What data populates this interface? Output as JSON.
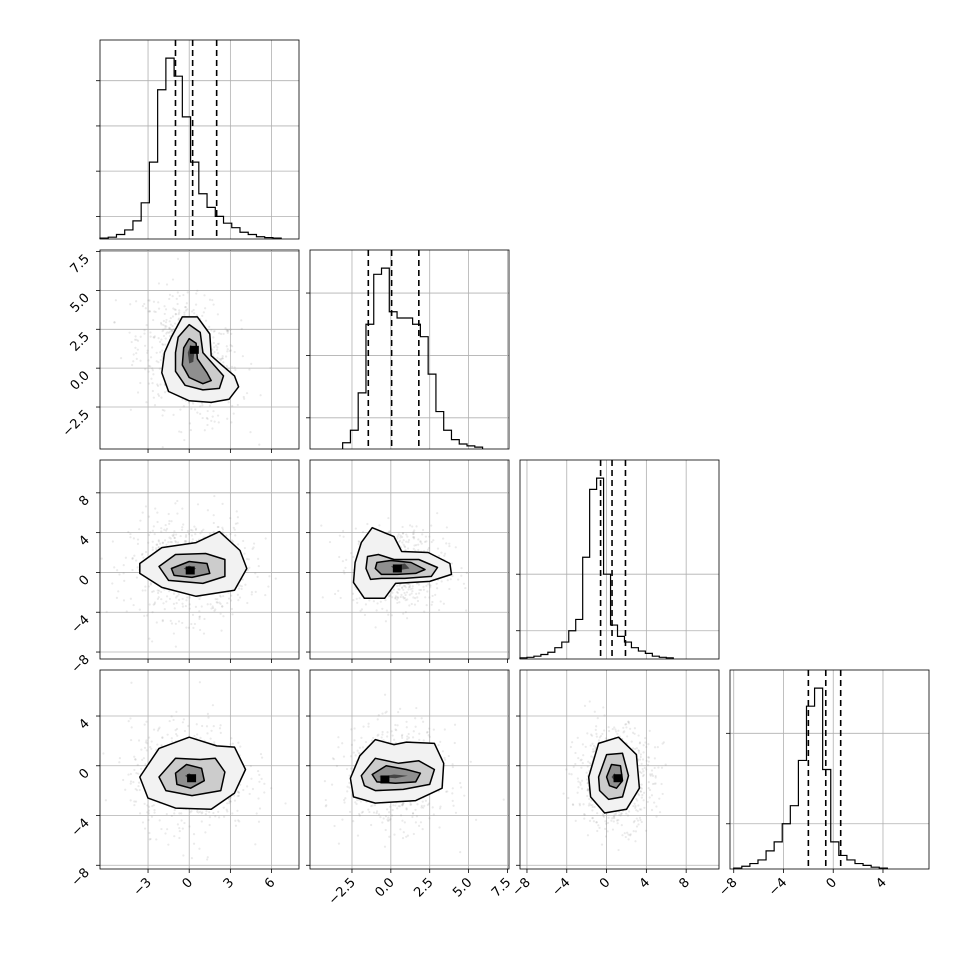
{
  "chart_data": {
    "type": "corner",
    "n_params": 4,
    "axis_ticks": [
      {
        "min": -6.5,
        "max": 8.0,
        "ticks": [
          -3,
          0,
          3,
          6
        ],
        "labels": [
          "−3",
          "0",
          "3",
          "6"
        ]
      },
      {
        "min": -5.2,
        "max": 7.6,
        "ticks": [
          -2.5,
          0.0,
          2.5,
          5.0,
          7.5
        ],
        "labels": [
          "−2.5",
          "0.0",
          "2.5",
          "5.0",
          "7.5"
        ]
      },
      {
        "min": -8.7,
        "max": 11.3,
        "ticks": [
          -8,
          -4,
          0,
          4,
          8
        ],
        "labels": [
          "−8",
          "−4",
          "0",
          "4",
          "8"
        ]
      },
      {
        "min": -8.3,
        "max": 7.7,
        "ticks": [
          -8,
          -4,
          0,
          4
        ],
        "labels": [
          "−8",
          "−4",
          "0",
          "4"
        ]
      }
    ],
    "quantiles": [
      [
        -1.0,
        0.25,
        2.0
      ],
      [
        -1.45,
        0.05,
        1.8
      ],
      [
        -0.6,
        0.55,
        1.9
      ],
      [
        -2.0,
        -0.6,
        0.6
      ]
    ],
    "hist_y_ticks": [
      [
        5,
        15,
        25,
        35
      ],
      [
        5,
        15,
        25
      ],
      [
        5,
        15
      ],
      [
        5,
        15
      ]
    ],
    "histograms": [
      {
        "edges_from": -6.5,
        "bin_width": 0.6,
        "counts": [
          0.2,
          0.4,
          1,
          2,
          4,
          8,
          17,
          33,
          40,
          36,
          27,
          17,
          10,
          7,
          5,
          3.5,
          2.5,
          1.5,
          1,
          0.5,
          0.3,
          0.2
        ]
      },
      {
        "edges_from": -3.1,
        "bin_width": 0.5,
        "counts": [
          1,
          3,
          9,
          20,
          28,
          29,
          22,
          21,
          21,
          20,
          18,
          12,
          6,
          3,
          1.5,
          0.8,
          0.5,
          0.3
        ]
      },
      {
        "edges_from": -8.7,
        "bin_width": 0.7,
        "counts": [
          0.2,
          0.3,
          0.5,
          0.8,
          1.2,
          2,
          3,
          5,
          7,
          18,
          30,
          32,
          15,
          6,
          4,
          3,
          2,
          1.4,
          1,
          0.5,
          0.3,
          0.2
        ]
      },
      {
        "edges_from": -8.0,
        "bin_width": 0.65,
        "counts": [
          0.1,
          0.3,
          0.6,
          1,
          2,
          3,
          5,
          7,
          12,
          18,
          20,
          11,
          3,
          1.5,
          1,
          0.6,
          0.4,
          0.2,
          0.1
        ]
      }
    ],
    "pairs": [
      {
        "row": 1,
        "col": 0,
        "cx": 0.0,
        "cy": 0.6,
        "sx": 1.5,
        "sy": 1.5,
        "shape": "banana",
        "levels": [
          [
            [
              -1.3,
              2.0
            ],
            [
              -0.5,
              3.3
            ],
            [
              0.6,
              3.3
            ],
            [
              1.5,
              2.2
            ],
            [
              1.6,
              0.8
            ],
            [
              2.5,
              0.1
            ],
            [
              3.3,
              -0.5
            ],
            [
              3.6,
              -1.2
            ],
            [
              2.9,
              -2.0
            ],
            [
              1.6,
              -2.2
            ],
            [
              0.0,
              -2.1
            ],
            [
              -1.5,
              -1.5
            ],
            [
              -2.0,
              -0.3
            ],
            [
              -1.8,
              1.0
            ]
          ],
          [
            [
              -0.8,
              2.0
            ],
            [
              0.0,
              2.8
            ],
            [
              0.8,
              2.3
            ],
            [
              1.0,
              1.0
            ],
            [
              1.8,
              0.2
            ],
            [
              2.5,
              -0.5
            ],
            [
              2.2,
              -1.3
            ],
            [
              1.0,
              -1.4
            ],
            [
              -0.3,
              -1.1
            ],
            [
              -1.0,
              -0.2
            ],
            [
              -1.0,
              1.0
            ]
          ],
          [
            [
              -0.4,
              1.3
            ],
            [
              0.0,
              1.9
            ],
            [
              0.5,
              1.6
            ],
            [
              0.6,
              0.6
            ],
            [
              1.3,
              -0.3
            ],
            [
              1.6,
              -0.8
            ],
            [
              1.0,
              -1.0
            ],
            [
              0.0,
              -0.6
            ],
            [
              -0.5,
              0.2
            ]
          ],
          [
            [
              -0.1,
              1.0
            ],
            [
              0.1,
              1.5
            ],
            [
              0.4,
              1.2
            ],
            [
              0.3,
              0.4
            ],
            [
              0.0,
              0.3
            ]
          ]
        ]
      },
      {
        "row": 2,
        "col": 0,
        "cx": 0.0,
        "cy": 0.4,
        "sx": 1.7,
        "sy": 2.0,
        "shape": "blob",
        "levels": [
          [
            [
              -3.6,
              0.9
            ],
            [
              -2.0,
              2.5
            ],
            [
              0.5,
              3.0
            ],
            [
              2.2,
              4.1
            ],
            [
              3.7,
              2.2
            ],
            [
              4.2,
              0.4
            ],
            [
              3.3,
              -1.8
            ],
            [
              0.5,
              -2.4
            ],
            [
              -2.0,
              -1.5
            ],
            [
              -3.6,
              -0.1
            ]
          ],
          [
            [
              -2.2,
              0.6
            ],
            [
              -1.0,
              1.8
            ],
            [
              1.2,
              1.9
            ],
            [
              2.6,
              1.3
            ],
            [
              2.6,
              -0.4
            ],
            [
              1.0,
              -1.1
            ],
            [
              -1.5,
              -0.8
            ]
          ],
          [
            [
              -1.3,
              0.4
            ],
            [
              0.0,
              1.1
            ],
            [
              1.3,
              0.9
            ],
            [
              1.5,
              -0.1
            ],
            [
              0.2,
              -0.5
            ],
            [
              -1.1,
              -0.3
            ]
          ],
          [
            [
              -0.4,
              0.4
            ],
            [
              0.0,
              0.7
            ],
            [
              0.5,
              0.4
            ],
            [
              0.1,
              0.0
            ]
          ]
        ]
      },
      {
        "row": 2,
        "col": 1,
        "cx": 0.6,
        "cy": 0.5,
        "sx": 1.2,
        "sy": 1.6,
        "shape": "blob",
        "levels": [
          [
            [
              -1.9,
              3.0
            ],
            [
              -1.2,
              4.5
            ],
            [
              0.2,
              3.6
            ],
            [
              0.7,
              2.1
            ],
            [
              2.4,
              2.0
            ],
            [
              3.8,
              0.9
            ],
            [
              3.9,
              -0.2
            ],
            [
              2.5,
              -0.9
            ],
            [
              0.3,
              -1.1
            ],
            [
              -0.4,
              -2.6
            ],
            [
              -1.7,
              -2.6
            ],
            [
              -2.4,
              -1.0
            ],
            [
              -2.3,
              1.0
            ]
          ],
          [
            [
              -1.5,
              1.6
            ],
            [
              -0.8,
              1.8
            ],
            [
              0.2,
              1.3
            ],
            [
              1.8,
              1.3
            ],
            [
              3.0,
              0.5
            ],
            [
              2.6,
              -0.4
            ],
            [
              0.9,
              -0.6
            ],
            [
              -0.6,
              -0.6
            ],
            [
              -1.3,
              -0.7
            ],
            [
              -1.6,
              0.4
            ]
          ],
          [
            [
              -0.9,
              1.0
            ],
            [
              0.0,
              1.2
            ],
            [
              1.3,
              1.0
            ],
            [
              2.2,
              0.3
            ],
            [
              1.6,
              -0.1
            ],
            [
              0.4,
              -0.2
            ],
            [
              -0.6,
              -0.2
            ],
            [
              -1.0,
              0.4
            ]
          ],
          [
            [
              0.0,
              0.6
            ],
            [
              0.9,
              0.9
            ],
            [
              1.2,
              0.4
            ],
            [
              0.4,
              0.2
            ]
          ]
        ]
      },
      {
        "row": 3,
        "col": 0,
        "cx": 0.0,
        "cy": -0.9,
        "sx": 1.7,
        "sy": 1.7,
        "shape": "blob",
        "levels": [
          [
            [
              -3.6,
              -0.9
            ],
            [
              -2.2,
              1.4
            ],
            [
              0.0,
              2.3
            ],
            [
              2.0,
              1.6
            ],
            [
              3.3,
              1.5
            ],
            [
              4.1,
              -0.3
            ],
            [
              3.3,
              -2.2
            ],
            [
              1.6,
              -3.5
            ],
            [
              -1.0,
              -3.4
            ],
            [
              -3.0,
              -2.6
            ]
          ],
          [
            [
              -2.2,
              -0.9
            ],
            [
              -1.0,
              0.6
            ],
            [
              0.8,
              0.5
            ],
            [
              1.9,
              0.6
            ],
            [
              2.6,
              -0.5
            ],
            [
              2.3,
              -2.0
            ],
            [
              0.2,
              -2.4
            ],
            [
              -1.7,
              -2.0
            ]
          ],
          [
            [
              -1.0,
              -0.6
            ],
            [
              -0.2,
              0.1
            ],
            [
              0.9,
              -0.2
            ],
            [
              1.1,
              -1.2
            ],
            [
              0.1,
              -1.8
            ],
            [
              -0.9,
              -1.5
            ]
          ],
          [
            [
              -0.3,
              -0.8
            ],
            [
              0.0,
              -0.6
            ],
            [
              0.4,
              -0.9
            ],
            [
              0.0,
              -1.1
            ]
          ]
        ]
      },
      {
        "row": 3,
        "col": 1,
        "cx": 0.3,
        "cy": -0.9,
        "sx": 1.3,
        "sy": 1.6,
        "shape": "blob",
        "levels": [
          [
            [
              -2.6,
              -1.0
            ],
            [
              -2.0,
              0.8
            ],
            [
              -1.0,
              2.1
            ],
            [
              0.2,
              1.7
            ],
            [
              1.0,
              1.9
            ],
            [
              2.8,
              1.8
            ],
            [
              3.4,
              0.2
            ],
            [
              3.3,
              -1.8
            ],
            [
              1.6,
              -2.8
            ],
            [
              -1.0,
              -3.0
            ],
            [
              -2.4,
              -2.5
            ]
          ],
          [
            [
              -1.9,
              -0.8
            ],
            [
              -1.0,
              0.6
            ],
            [
              0.5,
              0.2
            ],
            [
              1.8,
              0.4
            ],
            [
              2.8,
              -0.3
            ],
            [
              2.5,
              -1.5
            ],
            [
              0.8,
              -1.9
            ],
            [
              -1.0,
              -2.0
            ],
            [
              -1.7,
              -1.6
            ]
          ],
          [
            [
              -1.2,
              -0.7
            ],
            [
              -0.3,
              0.0
            ],
            [
              1.0,
              -0.3
            ],
            [
              1.9,
              -0.6
            ],
            [
              1.6,
              -1.3
            ],
            [
              0.3,
              -1.4
            ],
            [
              -0.9,
              -1.3
            ]
          ],
          [
            [
              -0.8,
              -0.9
            ],
            [
              0.2,
              -0.7
            ],
            [
              1.1,
              -0.8
            ],
            [
              0.3,
              -1.0
            ]
          ]
        ]
      },
      {
        "row": 3,
        "col": 2,
        "cx": 0.8,
        "cy": -0.9,
        "sx": 1.6,
        "sy": 1.6,
        "shape": "blob",
        "levels": [
          [
            [
              -1.8,
              -0.9
            ],
            [
              -0.8,
              1.8
            ],
            [
              1.2,
              2.3
            ],
            [
              3.0,
              0.9
            ],
            [
              3.3,
              -1.8
            ],
            [
              2.0,
              -3.5
            ],
            [
              -0.2,
              -3.8
            ],
            [
              -1.6,
              -2.5
            ]
          ],
          [
            [
              -0.8,
              -0.9
            ],
            [
              0.0,
              0.9
            ],
            [
              1.6,
              1.0
            ],
            [
              2.2,
              -0.8
            ],
            [
              1.6,
              -2.5
            ],
            [
              0.2,
              -2.7
            ],
            [
              -0.7,
              -2.0
            ]
          ],
          [
            [
              0.0,
              -0.9
            ],
            [
              0.5,
              0.1
            ],
            [
              1.4,
              0.0
            ],
            [
              1.6,
              -1.2
            ],
            [
              1.0,
              -1.8
            ],
            [
              0.3,
              -1.6
            ]
          ],
          [
            [
              0.5,
              -0.9
            ],
            [
              0.8,
              -0.6
            ],
            [
              1.1,
              -0.9
            ],
            [
              0.8,
              -1.2
            ]
          ]
        ]
      }
    ]
  }
}
